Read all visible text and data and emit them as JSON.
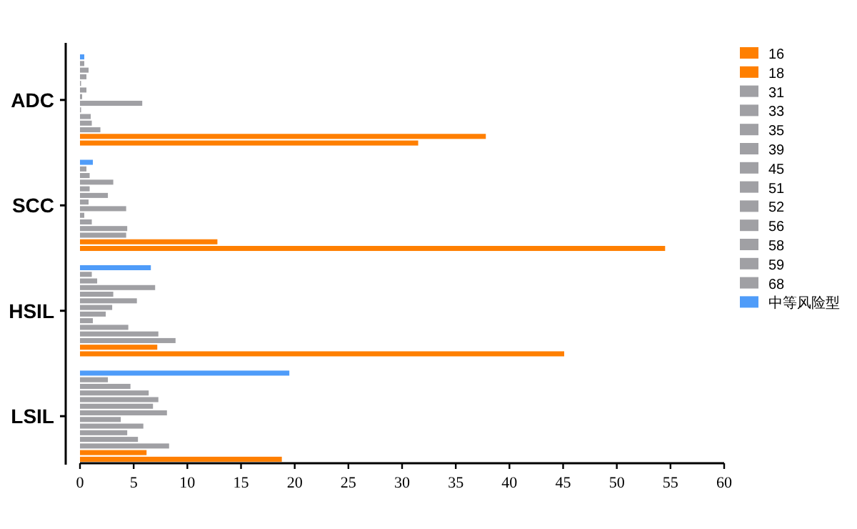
{
  "chart_data": {
    "type": "bar",
    "orientation": "horizontal",
    "categories": [
      "ADC",
      "SCC",
      "HSIL",
      "LSIL"
    ],
    "series": [
      {
        "name": "中等风险型",
        "color": "#4f9cf9",
        "values": [
          0.4,
          1.2,
          6.6,
          19.5
        ]
      },
      {
        "name": "68",
        "color": "#a0a0a4",
        "values": [
          0.4,
          0.6,
          1.1,
          2.6
        ]
      },
      {
        "name": "59",
        "color": "#a0a0a4",
        "values": [
          0.8,
          0.9,
          1.6,
          4.7
        ]
      },
      {
        "name": "58",
        "color": "#a0a0a4",
        "values": [
          0.6,
          3.1,
          7.0,
          6.4
        ]
      },
      {
        "name": "56",
        "color": "#a0a0a4",
        "values": [
          0.1,
          0.9,
          3.1,
          7.3
        ]
      },
      {
        "name": "52",
        "color": "#a0a0a4",
        "values": [
          0.6,
          2.6,
          5.3,
          6.8
        ]
      },
      {
        "name": "51",
        "color": "#a0a0a4",
        "values": [
          0.2,
          0.8,
          3.0,
          8.1
        ]
      },
      {
        "name": "45",
        "color": "#a0a0a4",
        "values": [
          5.8,
          4.3,
          2.4,
          3.8
        ]
      },
      {
        "name": "39",
        "color": "#a0a0a4",
        "values": [
          0.1,
          0.4,
          1.2,
          5.9
        ]
      },
      {
        "name": "35",
        "color": "#a0a0a4",
        "values": [
          1.0,
          1.1,
          4.5,
          4.4
        ]
      },
      {
        "name": "33",
        "color": "#a0a0a4",
        "values": [
          1.1,
          4.4,
          7.3,
          5.4
        ]
      },
      {
        "name": "31",
        "color": "#a0a0a4",
        "values": [
          1.9,
          4.3,
          8.9,
          8.3
        ]
      },
      {
        "name": "18",
        "color": "#ff7f00",
        "values": [
          37.8,
          12.8,
          7.2,
          6.2
        ]
      },
      {
        "name": "16",
        "color": "#ff7f00",
        "values": [
          31.5,
          54.5,
          45.1,
          18.8
        ]
      }
    ],
    "xlim": [
      0,
      60
    ],
    "xticks": [
      0,
      5,
      10,
      15,
      20,
      25,
      30,
      35,
      40,
      45,
      50,
      55,
      60
    ],
    "grid": false,
    "legend": "right"
  }
}
